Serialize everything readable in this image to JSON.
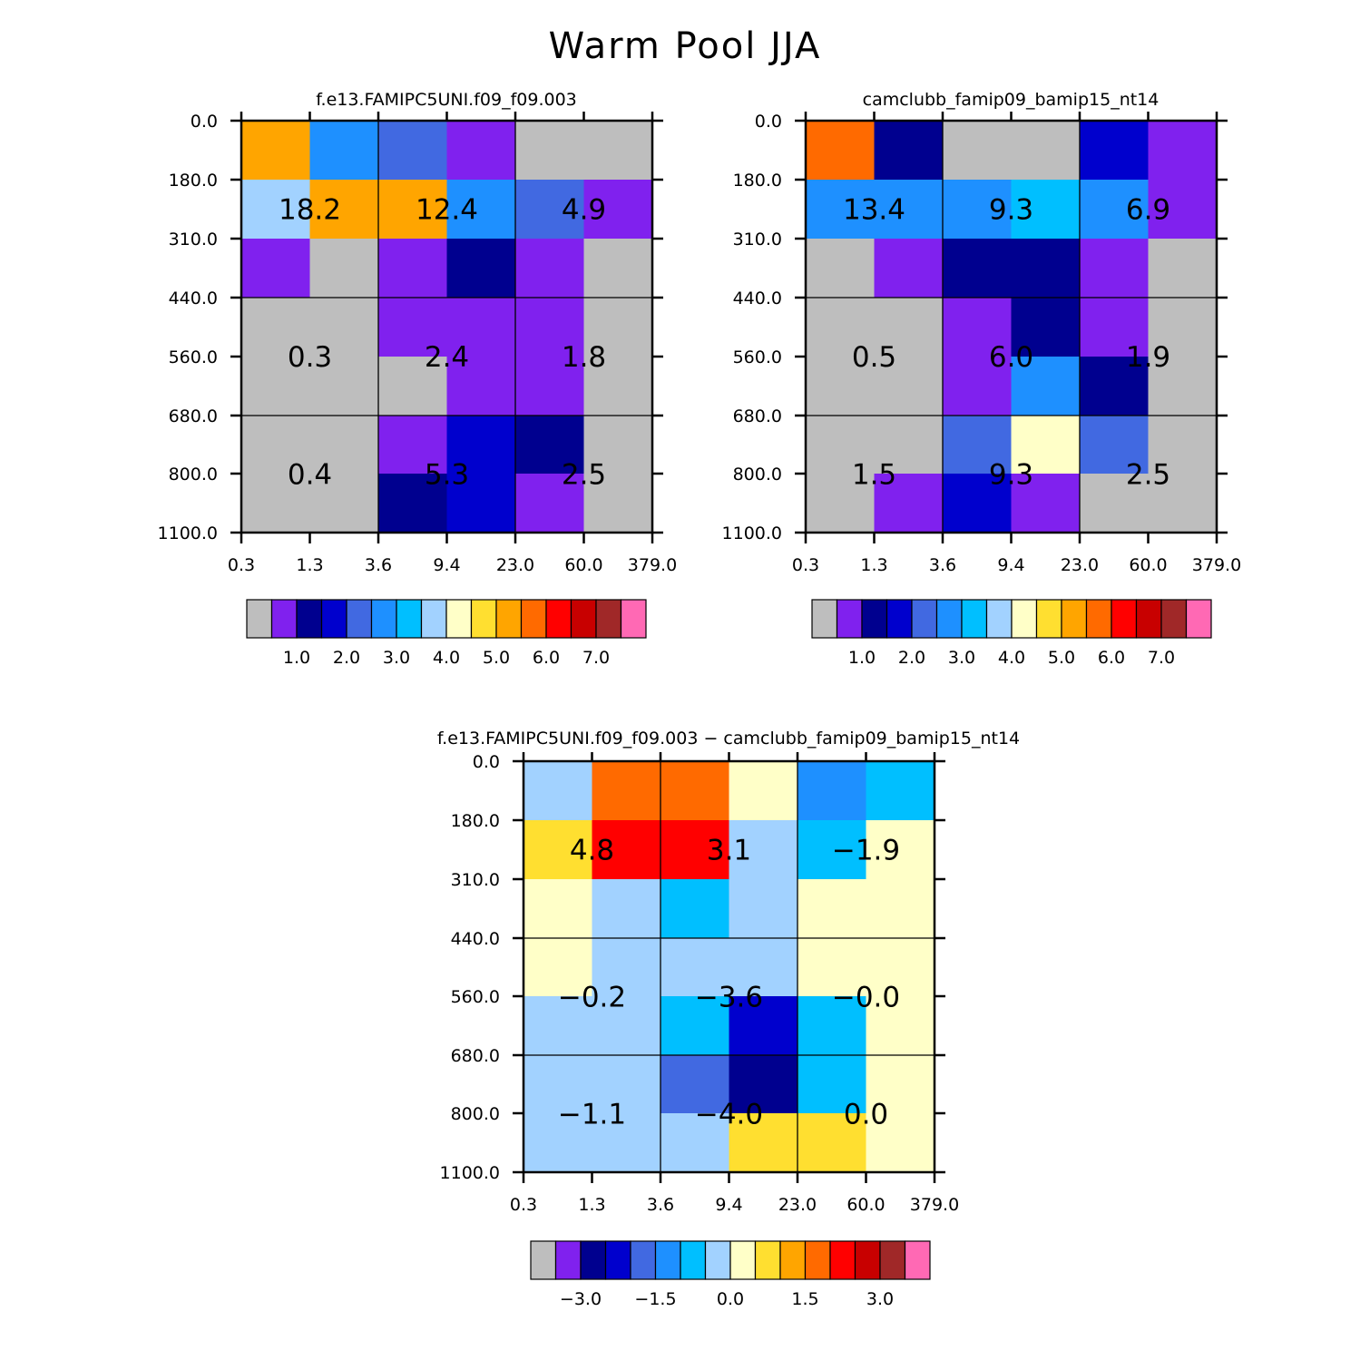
{
  "page_title": "Warm Pool JJA",
  "palette": [
    "#bebebe",
    "#8021ee",
    "#00008f",
    "#0000cd",
    "#4169e1",
    "#1e90ff",
    "#00bfff",
    "#a2d2ff",
    "#ffffc8",
    "#ffdf30",
    "#ffa500",
    "#ff6a00",
    "#ff0000",
    "#c80000",
    "#a02828",
    "#ff69b4"
  ],
  "chart_data": [
    {
      "type": "heatmap",
      "title": "f.e13.FAMIPC5UNI.f09_f09.003",
      "x_ticks": [
        "0.3",
        "1.3",
        "3.6",
        "9.4",
        "23.0",
        "60.0",
        "379.0"
      ],
      "y_ticks": [
        "0.0",
        "180.0",
        "310.0",
        "440.0",
        "560.0",
        "680.0",
        "800.0",
        "1100.0"
      ],
      "cells": [
        [
          10,
          5,
          4,
          1,
          0,
          0
        ],
        [
          7,
          10,
          10,
          5,
          4,
          1
        ],
        [
          1,
          0,
          1,
          2,
          1,
          0
        ],
        [
          0,
          0,
          1,
          1,
          1,
          0
        ],
        [
          0,
          0,
          0,
          1,
          1,
          0
        ],
        [
          0,
          0,
          1,
          3,
          2,
          0
        ],
        [
          0,
          0,
          2,
          3,
          1,
          0
        ]
      ],
      "box_labels": [
        [
          "18.2",
          "12.4",
          "4.9"
        ],
        [
          "0.3",
          "2.4",
          "1.8"
        ],
        [
          "0.4",
          "5.3",
          "2.5"
        ]
      ],
      "colorbar_labels": [
        "1.0",
        "2.0",
        "3.0",
        "4.0",
        "5.0",
        "6.0",
        "7.0"
      ]
    },
    {
      "type": "heatmap",
      "title": "camclubb_famip09_bamip15_nt14",
      "x_ticks": [
        "0.3",
        "1.3",
        "3.6",
        "9.4",
        "23.0",
        "60.0",
        "379.0"
      ],
      "y_ticks": [
        "0.0",
        "180.0",
        "310.0",
        "440.0",
        "560.0",
        "680.0",
        "800.0",
        "1100.0"
      ],
      "cells": [
        [
          11,
          2,
          0,
          0,
          3,
          1
        ],
        [
          5,
          5,
          5,
          6,
          5,
          1
        ],
        [
          0,
          1,
          2,
          2,
          1,
          0
        ],
        [
          0,
          0,
          1,
          2,
          1,
          0
        ],
        [
          0,
          0,
          1,
          5,
          2,
          0
        ],
        [
          0,
          0,
          4,
          8,
          4,
          0
        ],
        [
          0,
          1,
          3,
          1,
          0,
          0
        ]
      ],
      "box_labels": [
        [
          "13.4",
          "9.3",
          "6.9"
        ],
        [
          "0.5",
          "6.0",
          "1.9"
        ],
        [
          "1.5",
          "9.3",
          "2.5"
        ]
      ],
      "colorbar_labels": [
        "1.0",
        "2.0",
        "3.0",
        "4.0",
        "5.0",
        "6.0",
        "7.0"
      ]
    },
    {
      "type": "heatmap",
      "title": "f.e13.FAMIPC5UNI.f09_f09.003 − camclubb_famip09_bamip15_nt14",
      "x_ticks": [
        "0.3",
        "1.3",
        "3.6",
        "9.4",
        "23.0",
        "60.0",
        "379.0"
      ],
      "y_ticks": [
        "0.0",
        "180.0",
        "310.0",
        "440.0",
        "560.0",
        "680.0",
        "800.0",
        "1100.0"
      ],
      "cells": [
        [
          7,
          11,
          11,
          8,
          5,
          6
        ],
        [
          9,
          12,
          12,
          7,
          6,
          8
        ],
        [
          8,
          7,
          6,
          7,
          8,
          8
        ],
        [
          8,
          7,
          7,
          7,
          8,
          8
        ],
        [
          7,
          7,
          6,
          3,
          6,
          8
        ],
        [
          7,
          7,
          4,
          2,
          6,
          8
        ],
        [
          7,
          7,
          7,
          9,
          9,
          8
        ]
      ],
      "box_labels": [
        [
          "4.8",
          "3.1",
          "−1.9"
        ],
        [
          "−0.2",
          "−3.6",
          "−0.0"
        ],
        [
          "−1.1",
          "−4.0",
          "0.0"
        ]
      ],
      "colorbar_labels": [
        "−3.0",
        "−1.5",
        "0.0",
        "1.5",
        "3.0"
      ]
    }
  ]
}
